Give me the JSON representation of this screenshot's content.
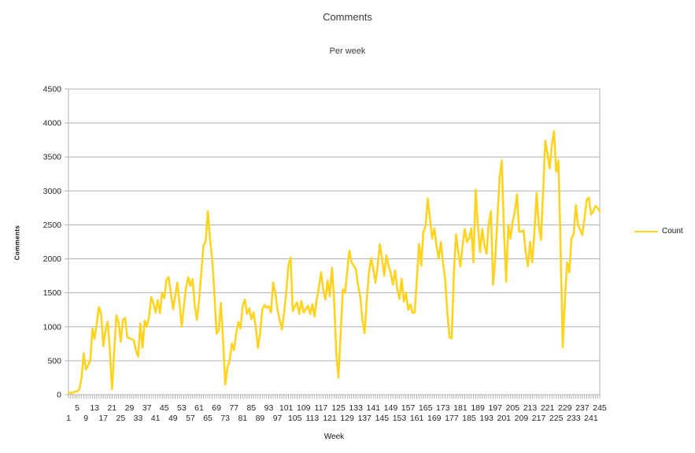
{
  "chart_data": {
    "type": "line",
    "title": "Comments",
    "subtitle": "Per week",
    "xlabel": "Week",
    "ylabel": "Comments",
    "grid": "horizontal",
    "legend": {
      "position": "right",
      "entries": [
        {
          "label": "Count",
          "color": "#FFD320"
        }
      ]
    },
    "colors": {
      "line": "#FFD320",
      "grid": "#b3b3b3",
      "axis": "#b3b3b3",
      "text": "#262626"
    },
    "ylim": [
      0,
      4500
    ],
    "y_ticks": [
      0,
      500,
      1000,
      1500,
      2000,
      2500,
      3000,
      3500,
      4000,
      4500
    ],
    "x_start": 1,
    "x_end": 245,
    "x_tick_labels": [
      1,
      5,
      9,
      13,
      17,
      21,
      25,
      29,
      33,
      37,
      41,
      45,
      49,
      53,
      57,
      61,
      65,
      69,
      73,
      77,
      81,
      85,
      89,
      93,
      97,
      101,
      105,
      109,
      113,
      117,
      121,
      125,
      129,
      133,
      137,
      141,
      145,
      149,
      153,
      157,
      161,
      165,
      169,
      173,
      177,
      181,
      185,
      189,
      193,
      197,
      201,
      205,
      209,
      213,
      217,
      221,
      225,
      229,
      233,
      237,
      241,
      245
    ],
    "series": [
      {
        "name": "Count",
        "color": "#FFD320",
        "values": [
          30,
          25,
          30,
          45,
          50,
          80,
          250,
          610,
          370,
          430,
          500,
          975,
          820,
          1050,
          1290,
          1190,
          715,
          950,
          1075,
          650,
          80,
          640,
          1170,
          1060,
          780,
          1100,
          1130,
          845,
          830,
          820,
          800,
          650,
          560,
          1050,
          690,
          1090,
          1000,
          1150,
          1440,
          1350,
          1210,
          1390,
          1200,
          1500,
          1420,
          1690,
          1730,
          1500,
          1260,
          1450,
          1650,
          1350,
          1000,
          1300,
          1580,
          1730,
          1600,
          1700,
          1300,
          1100,
          1400,
          1800,
          2200,
          2250,
          2700,
          2300,
          2000,
          1500,
          900,
          950,
          1350,
          800,
          150,
          400,
          500,
          750,
          655,
          900,
          1070,
          975,
          1300,
          1400,
          1190,
          1270,
          1110,
          1210,
          1000,
          690,
          900,
          1250,
          1320,
          1280,
          1300,
          1210,
          1650,
          1500,
          1250,
          1100,
          960,
          1200,
          1500,
          1900,
          2020,
          1230,
          1300,
          1360,
          1190,
          1380,
          1210,
          1260,
          1310,
          1190,
          1330,
          1150,
          1400,
          1580,
          1800,
          1550,
          1400,
          1680,
          1450,
          1870,
          1400,
          600,
          250,
          900,
          1550,
          1500,
          1800,
          2120,
          1950,
          1900,
          1850,
          1600,
          1450,
          1100,
          905,
          1400,
          1800,
          2010,
          1850,
          1650,
          1900,
          2215,
          2000,
          1750,
          2050,
          1900,
          1790,
          1620,
          1830,
          1550,
          1410,
          1710,
          1370,
          1500,
          1250,
          1330,
          1210,
          1210,
          1700,
          2220,
          1900,
          2400,
          2480,
          2890,
          2600,
          2300,
          2450,
          2200,
          2000,
          2250,
          1950,
          1700,
          1200,
          845,
          830,
          1800,
          2360,
          2100,
          1890,
          2200,
          2440,
          2250,
          2300,
          2450,
          1950,
          3020,
          2500,
          2100,
          2440,
          2200,
          2075,
          2500,
          2700,
          1620,
          2000,
          2600,
          3200,
          3450,
          2400,
          1660,
          2500,
          2300,
          2550,
          2700,
          2950,
          2400,
          2400,
          2420,
          2100,
          1890,
          2250,
          1950,
          2400,
          2970,
          2500,
          2280,
          3000,
          3740,
          3550,
          3330,
          3680,
          3880,
          3280,
          3450,
          2200,
          700,
          1400,
          1950,
          1800,
          2300,
          2360,
          2790,
          2500,
          2430,
          2350,
          2600,
          2870,
          2900,
          2650,
          2700,
          2780,
          2750,
          2700
        ]
      }
    ]
  }
}
